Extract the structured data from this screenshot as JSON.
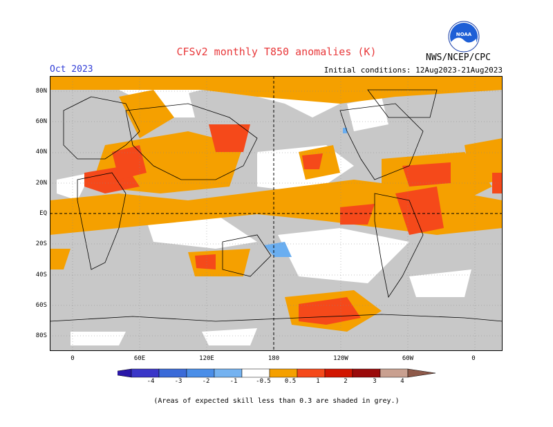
{
  "header": {
    "title": "CFSv2 monthly T850 anomalies (K)",
    "month": "Oct 2023",
    "initial_conditions": "Initial conditions: 12Aug2023-21Aug2023",
    "agency": "NWS/NCEP/CPC",
    "logo_text": "NOAA"
  },
  "map": {
    "lat_labels": [
      "80N",
      "60N",
      "40N",
      "20N",
      "EQ",
      "20S",
      "40S",
      "60S",
      "80S"
    ],
    "lon_labels": [
      "0",
      "60E",
      "120E",
      "180",
      "120W",
      "60W",
      "0"
    ],
    "colors": {
      "grey": "#c8c8c8",
      "orange": "#f5a000",
      "red_orange": "#f5491a",
      "red": "#d11500",
      "light_blue": "#6aaef0"
    }
  },
  "colorbar": {
    "labels": [
      "-4",
      "-3",
      "-2",
      "-1",
      "-0.5",
      "0.5",
      "1",
      "2",
      "3",
      "4"
    ],
    "colors": [
      "#2a17a8",
      "#3a36c8",
      "#3a6ad8",
      "#4a8ee8",
      "#74b2f0",
      "#ffffff",
      "#f5a000",
      "#f5491a",
      "#d11500",
      "#9a0a0a",
      "#c9a090",
      "#8e5a4a"
    ]
  },
  "footnote": "(Areas of expected skill less than 0.3 are shaded in grey.)"
}
